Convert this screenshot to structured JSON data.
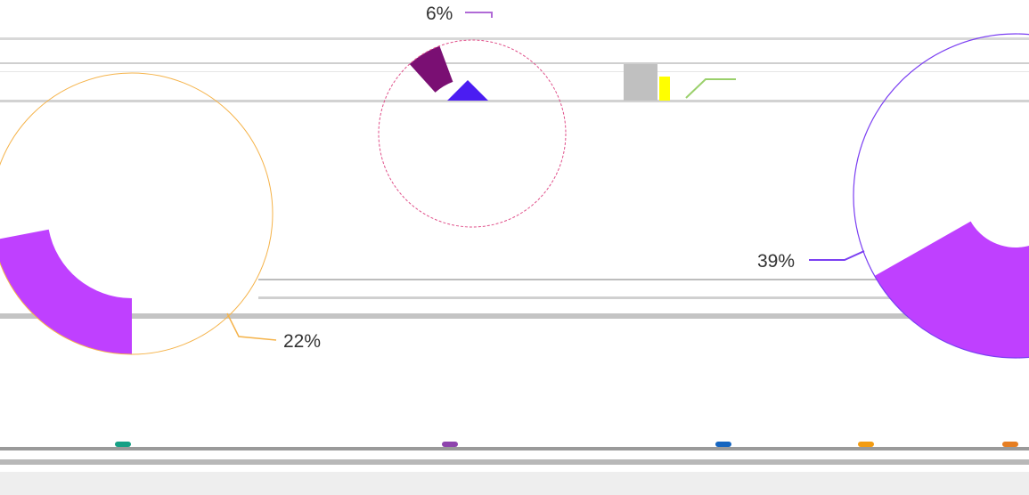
{
  "chart_data": [
    {
      "type": "pie",
      "variant": "donut",
      "slices": [
        {
          "label": "22%",
          "value": 22,
          "color": "#bf40ff"
        }
      ],
      "leader_color": "#f5b34a"
    },
    {
      "type": "pie",
      "variant": "donut",
      "slices": [
        {
          "label": "6%",
          "value": 6,
          "color": "#7a0f73"
        }
      ],
      "leader_color": "#b06ad6",
      "other_colors": [
        "#4b1df2",
        "#ffff00",
        "#c0c0c0",
        "#9ad06b"
      ]
    },
    {
      "type": "pie",
      "variant": "donut",
      "slices": [
        {
          "label": "39%",
          "value": 39,
          "color": "#bf40ff"
        }
      ],
      "leader_color": "#7b3ff2"
    }
  ],
  "legend_colors": [
    "#16a085",
    "#8e44ad",
    "#1565c0",
    "#f39c12",
    "#e67e22"
  ]
}
